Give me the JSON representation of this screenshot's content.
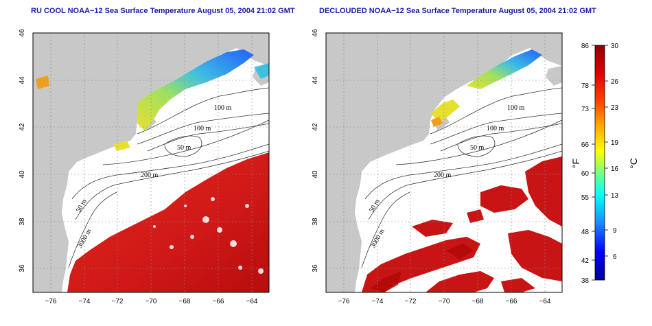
{
  "panels": [
    {
      "title": "RU COOL NOAA−12 Sea Surface Temperature August 05, 2004 21:02 GMT",
      "contour_labels": [
        "100 m",
        "100 m",
        "50 m",
        "200 m",
        "50 m",
        "3000 m"
      ]
    },
    {
      "title": "DECLOUDED NOAA−12 Sea Surface Temperature August 05, 2004 21:02 GMT",
      "contour_labels": [
        "100 m",
        "100 m",
        "50 m",
        "200 m",
        "50 m",
        "3000 m"
      ]
    }
  ],
  "axes": {
    "x_ticks": [
      "−76",
      "−74",
      "−72",
      "−70",
      "−68",
      "−66",
      "−64"
    ],
    "y_ticks": [
      "36",
      "38",
      "40",
      "42",
      "44",
      "46"
    ],
    "xlim": [
      -77,
      -63
    ],
    "ylim": [
      35,
      46
    ]
  },
  "colorbar": {
    "fahrenheit_unit": "°F",
    "celsius_unit": "°C",
    "fahrenheit_ticks": [
      "86",
      "78",
      "73",
      "66",
      "60",
      "55",
      "48",
      "42",
      "38"
    ],
    "celsius_ticks": [
      "30",
      "26",
      "23",
      "19",
      "16",
      "13",
      "9",
      "6"
    ],
    "range_c": [
      3.3,
      30
    ],
    "colors": [
      "#00008b",
      "#0000ff",
      "#1e90ff",
      "#00ffff",
      "#7fff7f",
      "#ffff00",
      "#ffa500",
      "#ff4500",
      "#dd0000",
      "#8b0000"
    ]
  },
  "map_colors": {
    "land": "#c8c8c8",
    "ocean_nodata": "#ffffff",
    "warm": "#d42020",
    "warm_dark": "#b51010",
    "cool_blue": "#2a7fff",
    "cool_cyan": "#40d0e0",
    "yellow": "#e8e030",
    "orange": "#f0a020"
  }
}
